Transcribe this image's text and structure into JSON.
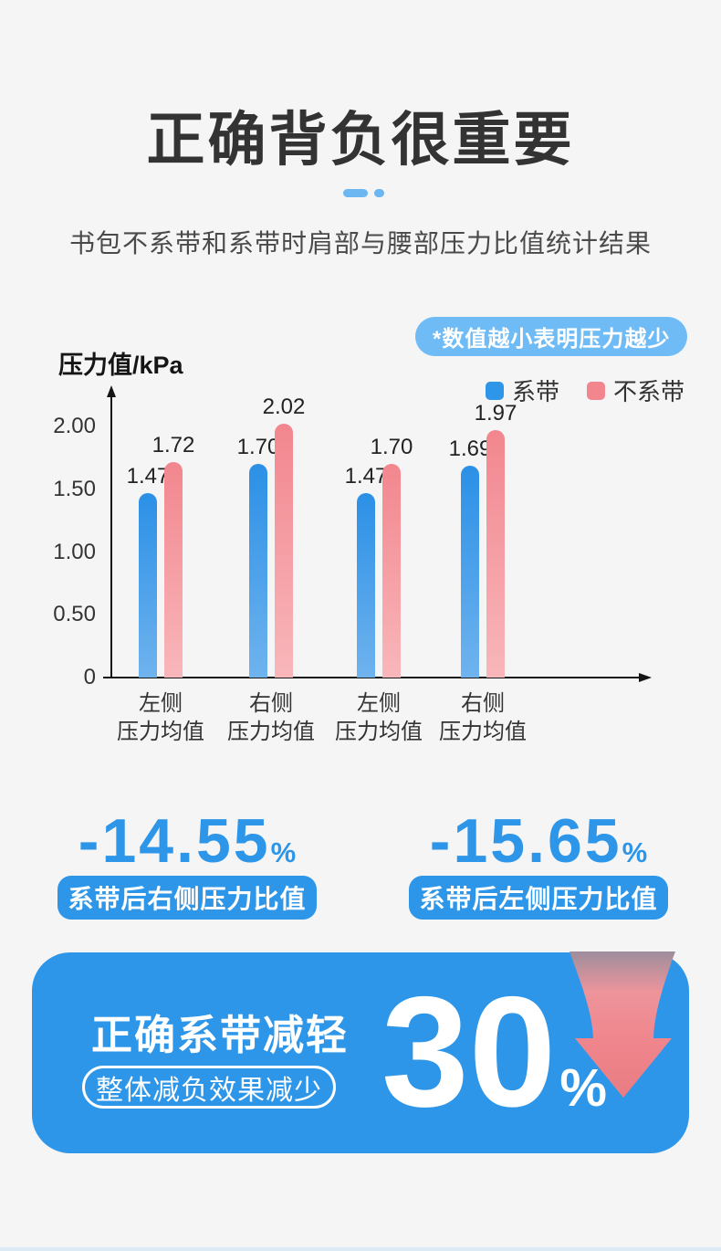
{
  "page": {
    "background": "#F5F5F6",
    "accent_blue": "#2E96E8",
    "accent_light_blue": "#6FBBF5",
    "accent_pink": "#F2868E"
  },
  "header": {
    "title": "正确背负很重要",
    "subtitle": "书包不系带和系带时肩部与腰部压力比值统计结果"
  },
  "chart": {
    "note_badge": "*数值越小表明压力越少",
    "note_badge_color": "#6FBBF5",
    "y_axis_label": "压力值/kPa",
    "legend": [
      {
        "label": "系带",
        "color": "#2E96E8"
      },
      {
        "label": "不系带",
        "color": "#F2868E"
      }
    ]
  },
  "chart_data": {
    "type": "bar",
    "title": "书包不系带和系带时肩部与腰部压力比值统计结果",
    "ylabel": "压力值/kPa",
    "yticks": [
      "0",
      "0.50",
      "1.00",
      "1.50",
      "2.00"
    ],
    "ylim": [
      0,
      2.3
    ],
    "grid": false,
    "legend_position": "top-right",
    "categories": [
      [
        "左侧",
        "压力均值"
      ],
      [
        "右侧",
        "压力均值"
      ],
      [
        "左侧",
        "压力均值"
      ],
      [
        "右侧",
        "压力均值"
      ]
    ],
    "series": [
      {
        "name": "系带",
        "values": [
          "1.47",
          "1.70",
          "1.47",
          "1.69"
        ],
        "color_top": "#2B90E6",
        "color_bottom": "#6FB3EE"
      },
      {
        "name": "不系带",
        "values": [
          "1.72",
          "2.02",
          "1.70",
          "1.97"
        ],
        "color_top": "#F2868E",
        "color_bottom": "#F8B7BB"
      }
    ]
  },
  "stats": [
    {
      "value": "-14.55",
      "unit": "%",
      "label": "系带后右侧压力比值"
    },
    {
      "value": "-15.65",
      "unit": "%",
      "label": "系带后左侧压力比值"
    }
  ],
  "banner": {
    "heading": "正确系带减轻",
    "subheading": "整体减负效果减少",
    "value": "30",
    "unit": "%",
    "background": "#2E96E8",
    "arrow_color": "#EF838B"
  }
}
